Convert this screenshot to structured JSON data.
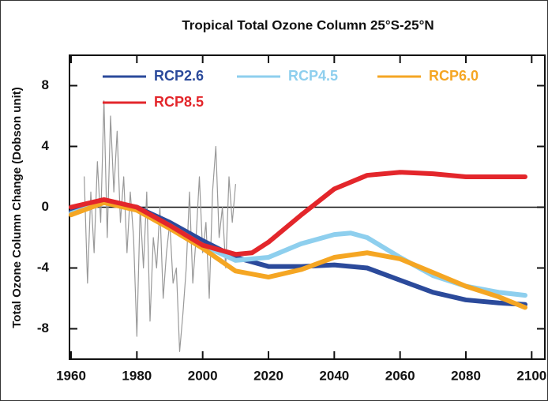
{
  "chart_data": {
    "type": "line",
    "title": "Tropical Total Ozone Column 25°S-25°N",
    "y_label": "Total Ozone Column Change (Dobson unit)",
    "xlim": [
      1960,
      2104
    ],
    "ylim": [
      -10,
      10
    ],
    "xticks": [
      1960,
      1980,
      2000,
      2020,
      2040,
      2060,
      2080,
      2100
    ],
    "yticks": [
      -8,
      -4,
      0,
      4,
      8
    ],
    "grid": false,
    "legend": "top-left",
    "series": [
      {
        "color": "#999999",
        "x": [
          1964,
          1965,
          1966,
          1967,
          1968,
          1969,
          1970,
          1971,
          1972,
          1973,
          1974,
          1975,
          1976,
          1977,
          1978,
          1979,
          1980,
          1981,
          1982,
          1983,
          1984,
          1985,
          1986,
          1987,
          1988,
          1989,
          1990,
          1991,
          1992,
          1993,
          1994,
          1995,
          1996,
          1997,
          1998,
          1999,
          2000,
          2001,
          2002,
          2003,
          2004,
          2005,
          2006,
          2007,
          2008,
          2009,
          2010
        ],
        "values": [
          2,
          -5,
          1,
          -3,
          3,
          -1,
          7,
          -2,
          6,
          1,
          5,
          -1,
          2,
          -3,
          1,
          -2,
          -8.5,
          0,
          -4,
          1,
          -7.5,
          -2,
          -4,
          0,
          -6,
          -3,
          -1,
          -5,
          -4,
          -9.5,
          -7,
          -4,
          1,
          -5,
          -2,
          2,
          -3,
          -1,
          -6,
          1,
          4,
          -2,
          0,
          -4,
          2,
          -1,
          1.5
        ]
      },
      {
        "name": "RCP2.6",
        "color": "#2b4a9b",
        "x": [
          1960,
          1970,
          1980,
          1990,
          2000,
          2010,
          2020,
          2030,
          2040,
          2050,
          2060,
          2070,
          2080,
          2090,
          2098
        ],
        "values": [
          -0.3,
          0.4,
          0,
          -1.0,
          -2.2,
          -3.3,
          -3.9,
          -3.9,
          -3.8,
          -4.0,
          -4.8,
          -5.6,
          -6.1,
          -6.3,
          -6.4
        ]
      },
      {
        "name": "RCP4.5",
        "color": "#8ecfee",
        "x": [
          1960,
          1970,
          1980,
          1990,
          2000,
          2010,
          2020,
          2030,
          2040,
          2045,
          2050,
          2060,
          2070,
          2080,
          2090,
          2098
        ],
        "values": [
          -0.4,
          0.3,
          -0.1,
          -1.2,
          -2.5,
          -3.5,
          -3.3,
          -2.4,
          -1.8,
          -1.7,
          -2.0,
          -3.3,
          -4.5,
          -5.2,
          -5.6,
          -5.8
        ]
      },
      {
        "name": "RCP6.0",
        "color": "#f5a623",
        "x": [
          1960,
          1970,
          1980,
          1990,
          2000,
          2010,
          2020,
          2030,
          2040,
          2050,
          2060,
          2070,
          2080,
          2090,
          2098
        ],
        "values": [
          -0.5,
          0.3,
          -0.2,
          -1.4,
          -2.7,
          -4.2,
          -4.6,
          -4.1,
          -3.3,
          -3.0,
          -3.4,
          -4.3,
          -5.2,
          -5.9,
          -6.6
        ]
      },
      {
        "name": "RCP8.5",
        "color": "#e3262b",
        "x": [
          1960,
          1970,
          1980,
          1990,
          2000,
          2010,
          2015,
          2020,
          2030,
          2040,
          2050,
          2060,
          2070,
          2080,
          2090,
          2098
        ],
        "values": [
          0,
          0.5,
          0,
          -1.2,
          -2.5,
          -3.1,
          -3.0,
          -2.3,
          -0.5,
          1.2,
          2.1,
          2.3,
          2.2,
          2.0,
          2.0,
          2.0
        ]
      }
    ]
  }
}
